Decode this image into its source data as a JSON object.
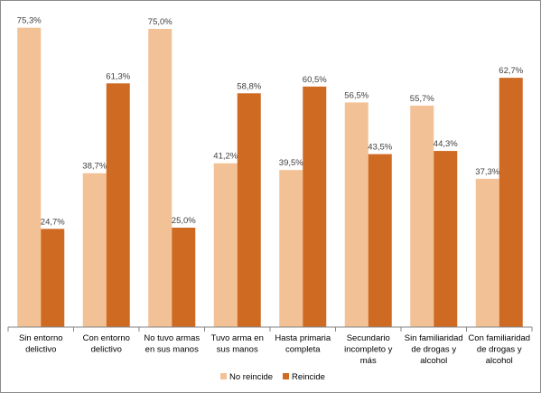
{
  "chart_data": {
    "type": "bar",
    "categories": [
      [
        "Sin entorno",
        "delictivo"
      ],
      [
        "Con entorno",
        "delictivo"
      ],
      [
        "No tuvo armas",
        "en sus manos"
      ],
      [
        "Tuvo arma en",
        "sus manos"
      ],
      [
        "Hasta primaria",
        "completa"
      ],
      [
        "Secundario",
        "incompleto y",
        "más"
      ],
      [
        "Sin familiaridad",
        "de drogas y",
        "alcohol"
      ],
      [
        "Con familiaridad",
        "de drogas y",
        "alcohol"
      ]
    ],
    "series": [
      {
        "name": "No reincide",
        "color": "#F2C196",
        "values": [
          75.3,
          38.7,
          75.0,
          41.2,
          39.5,
          56.5,
          55.7,
          37.3
        ],
        "labels": [
          "75,3%",
          "38,7%",
          "75,0%",
          "41,2%",
          "39,5%",
          "56,5%",
          "55,7%",
          "37,3%"
        ]
      },
      {
        "name": "Reincide",
        "color": "#CF6A22",
        "values": [
          24.7,
          61.3,
          25.0,
          58.8,
          60.5,
          43.5,
          44.3,
          62.7
        ],
        "labels": [
          "24,7%",
          "61,3%",
          "25,0%",
          "58,8%",
          "60,5%",
          "43,5%",
          "44,3%",
          "62,7%"
        ]
      }
    ],
    "ylim": [
      0,
      80
    ],
    "grid": false,
    "legend": "bottom-center"
  }
}
